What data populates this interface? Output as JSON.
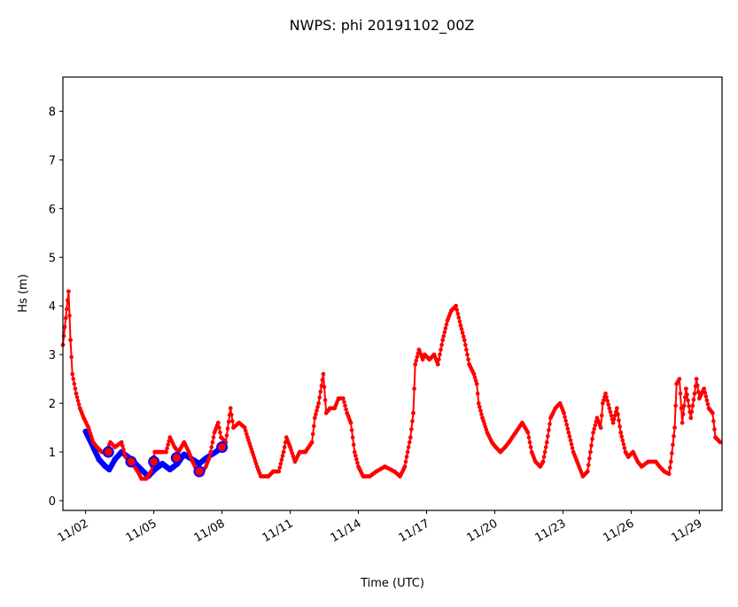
{
  "chart_data": {
    "type": "line",
    "title": "NWPS: phi 20191102_00Z",
    "xlabel": "Time (UTC)",
    "ylabel": "Hs (m)",
    "xlim": [
      "2019-11-01 00",
      "2019-11-30 00"
    ],
    "ylim": [
      -0.2,
      8.7
    ],
    "yticks": [
      0,
      1,
      2,
      3,
      4,
      5,
      6,
      7,
      8
    ],
    "xticks": [
      {
        "t": "2019-11-02 00",
        "label": "11/02"
      },
      {
        "t": "2019-11-05 00",
        "label": "11/05"
      },
      {
        "t": "2019-11-08 00",
        "label": "11/08"
      },
      {
        "t": "2019-11-11 00",
        "label": "11/11"
      },
      {
        "t": "2019-11-14 00",
        "label": "11/14"
      },
      {
        "t": "2019-11-17 00",
        "label": "11/17"
      },
      {
        "t": "2019-11-20 00",
        "label": "11/20"
      },
      {
        "t": "2019-11-23 00",
        "label": "11/23"
      },
      {
        "t": "2019-11-26 00",
        "label": "11/26"
      },
      {
        "t": "2019-11-29 00",
        "label": "11/29"
      }
    ],
    "grid": false,
    "legend": "none",
    "series": [
      {
        "color": "#0000ff",
        "points": [
          [
            "2019-11-02 00",
            1.42
          ],
          [
            "2019-11-02 08",
            1.1
          ],
          [
            "2019-11-02 14",
            0.85
          ],
          [
            "2019-11-02 20",
            0.72
          ],
          [
            "2019-11-03 01",
            0.64
          ],
          [
            "2019-11-03 07",
            0.85
          ],
          [
            "2019-11-03 14",
            1.0
          ],
          [
            "2019-11-04 00",
            0.85
          ],
          [
            "2019-11-04 18",
            0.5
          ],
          [
            "2019-11-05 01",
            0.64
          ],
          [
            "2019-11-05 09",
            0.76
          ],
          [
            "2019-11-05 17",
            0.64
          ],
          [
            "2019-11-06 01",
            0.76
          ],
          [
            "2019-11-06 08",
            0.95
          ],
          [
            "2019-11-06 19",
            0.82
          ],
          [
            "2019-11-07 00",
            0.76
          ],
          [
            "2019-11-07 07",
            0.87
          ],
          [
            "2019-11-08 01",
            1.1
          ]
        ],
        "daily_markers": [
          [
            "2019-11-03 00",
            1.0
          ],
          [
            "2019-11-04 00",
            0.8
          ],
          [
            "2019-11-05 00",
            0.8
          ],
          [
            "2019-11-06 00",
            0.88
          ],
          [
            "2019-11-07 00",
            0.6
          ],
          [
            "2019-11-08 00",
            1.1
          ]
        ]
      },
      {
        "color": "#ff0000",
        "points": [
          [
            "2019-11-01 00",
            3.2
          ],
          [
            "2019-11-01 06",
            4.3
          ],
          [
            "2019-11-01 08",
            3.3
          ],
          [
            "2019-11-01 10",
            2.6
          ],
          [
            "2019-11-01 14",
            2.2
          ],
          [
            "2019-11-01 18",
            1.9
          ],
          [
            "2019-11-01 22",
            1.7
          ],
          [
            "2019-11-02 03",
            1.5
          ],
          [
            "2019-11-02 08",
            1.2
          ],
          [
            "2019-11-02 12",
            1.1
          ],
          [
            "2019-11-02 17",
            1.0
          ],
          [
            "2019-11-02 22",
            1.0
          ],
          [
            "2019-11-03 02",
            1.2
          ],
          [
            "2019-11-03 07",
            1.1
          ],
          [
            "2019-11-03 14",
            1.2
          ],
          [
            "2019-11-03 18",
            0.9
          ],
          [
            "2019-11-04 00",
            0.8
          ],
          [
            "2019-11-04 07",
            0.6
          ],
          [
            "2019-11-04 11",
            0.45
          ],
          [
            "2019-11-04 16",
            0.45
          ],
          [
            "2019-11-04 21",
            0.6
          ],
          [
            "2019-11-05 01",
            1.0
          ],
          [
            "2019-11-05 06",
            1.0
          ],
          [
            "2019-11-05 13",
            1.0
          ],
          [
            "2019-11-05 17",
            1.3
          ],
          [
            "2019-11-05 22",
            1.1
          ],
          [
            "2019-11-06 02",
            1.0
          ],
          [
            "2019-11-06 08",
            1.2
          ],
          [
            "2019-11-06 13",
            1.0
          ],
          [
            "2019-11-06 17",
            0.8
          ],
          [
            "2019-11-06 22",
            0.6
          ],
          [
            "2019-11-07 02",
            0.55
          ],
          [
            "2019-11-07 07",
            0.7
          ],
          [
            "2019-11-07 11",
            0.9
          ],
          [
            "2019-11-07 16",
            1.4
          ],
          [
            "2019-11-07 20",
            1.6
          ],
          [
            "2019-11-07 23",
            1.3
          ],
          [
            "2019-11-08 04",
            1.2
          ],
          [
            "2019-11-08 09",
            1.9
          ],
          [
            "2019-11-08 12",
            1.5
          ],
          [
            "2019-11-08 18",
            1.6
          ],
          [
            "2019-11-09 00",
            1.5
          ],
          [
            "2019-11-09 03",
            1.3
          ],
          [
            "2019-11-09 08",
            1.0
          ],
          [
            "2019-11-09 13",
            0.7
          ],
          [
            "2019-11-09 17",
            0.5
          ],
          [
            "2019-11-10 01",
            0.5
          ],
          [
            "2019-11-10 06",
            0.6
          ],
          [
            "2019-11-10 12",
            0.6
          ],
          [
            "2019-11-10 17",
            1.0
          ],
          [
            "2019-11-10 20",
            1.3
          ],
          [
            "2019-11-11 00",
            1.1
          ],
          [
            "2019-11-11 05",
            0.8
          ],
          [
            "2019-11-11 10",
            1.0
          ],
          [
            "2019-11-11 16",
            1.0
          ],
          [
            "2019-11-11 23",
            1.2
          ],
          [
            "2019-11-12 02",
            1.7
          ],
          [
            "2019-11-12 06",
            2.0
          ],
          [
            "2019-11-12 11",
            2.6
          ],
          [
            "2019-11-12 14",
            1.8
          ],
          [
            "2019-11-12 18",
            1.9
          ],
          [
            "2019-11-12 23",
            1.9
          ],
          [
            "2019-11-13 03",
            2.1
          ],
          [
            "2019-11-13 08",
            2.1
          ],
          [
            "2019-11-13 12",
            1.8
          ],
          [
            "2019-11-13 16",
            1.6
          ],
          [
            "2019-11-13 20",
            1.0
          ],
          [
            "2019-11-14 00",
            0.7
          ],
          [
            "2019-11-14 05",
            0.5
          ],
          [
            "2019-11-14 12",
            0.5
          ],
          [
            "2019-11-14 19",
            0.6
          ],
          [
            "2019-11-15 04",
            0.7
          ],
          [
            "2019-11-15 14",
            0.6
          ],
          [
            "2019-11-15 20",
            0.5
          ],
          [
            "2019-11-16 01",
            0.7
          ],
          [
            "2019-11-16 07",
            1.3
          ],
          [
            "2019-11-16 10",
            1.8
          ],
          [
            "2019-11-16 12",
            2.8
          ],
          [
            "2019-11-16 16",
            3.1
          ],
          [
            "2019-11-16 20",
            2.9
          ],
          [
            "2019-11-16 22",
            3.0
          ],
          [
            "2019-11-17 03",
            2.9
          ],
          [
            "2019-11-17 08",
            3.0
          ],
          [
            "2019-11-17 12",
            2.8
          ],
          [
            "2019-11-17 17",
            3.3
          ],
          [
            "2019-11-17 22",
            3.7
          ],
          [
            "2019-11-18 02",
            3.9
          ],
          [
            "2019-11-18 07",
            4.0
          ],
          [
            "2019-11-18 12",
            3.6
          ],
          [
            "2019-11-18 16",
            3.3
          ],
          [
            "2019-11-18 21",
            2.8
          ],
          [
            "2019-11-19 02",
            2.6
          ],
          [
            "2019-11-19 05",
            2.4
          ],
          [
            "2019-11-19 07",
            2.0
          ],
          [
            "2019-11-19 11",
            1.7
          ],
          [
            "2019-11-19 16",
            1.4
          ],
          [
            "2019-11-19 21",
            1.2
          ],
          [
            "2019-11-20 01",
            1.1
          ],
          [
            "2019-11-20 06",
            1.0
          ],
          [
            "2019-11-20 11",
            1.1
          ],
          [
            "2019-11-20 15",
            1.2
          ],
          [
            "2019-11-20 22",
            1.4
          ],
          [
            "2019-11-21 05",
            1.6
          ],
          [
            "2019-11-21 11",
            1.4
          ],
          [
            "2019-11-21 15",
            1.0
          ],
          [
            "2019-11-21 19",
            0.8
          ],
          [
            "2019-11-22 00",
            0.7
          ],
          [
            "2019-11-22 03",
            0.8
          ],
          [
            "2019-11-22 07",
            1.2
          ],
          [
            "2019-11-22 11",
            1.7
          ],
          [
            "2019-11-22 16",
            1.9
          ],
          [
            "2019-11-22 21",
            2.0
          ],
          [
            "2019-11-23 01",
            1.8
          ],
          [
            "2019-11-23 06",
            1.4
          ],
          [
            "2019-11-23 11",
            1.0
          ],
          [
            "2019-11-23 15",
            0.8
          ],
          [
            "2019-11-23 21",
            0.5
          ],
          [
            "2019-11-24 02",
            0.6
          ],
          [
            "2019-11-24 05",
            1.0
          ],
          [
            "2019-11-24 08",
            1.4
          ],
          [
            "2019-11-24 12",
            1.7
          ],
          [
            "2019-11-24 16",
            1.5
          ],
          [
            "2019-11-24 18",
            2.0
          ],
          [
            "2019-11-24 21",
            2.2
          ],
          [
            "2019-11-25 01",
            1.9
          ],
          [
            "2019-11-25 05",
            1.6
          ],
          [
            "2019-11-25 09",
            1.9
          ],
          [
            "2019-11-25 13",
            1.4
          ],
          [
            "2019-11-25 18",
            1.0
          ],
          [
            "2019-11-25 21",
            0.9
          ],
          [
            "2019-11-26 02",
            1.0
          ],
          [
            "2019-11-26 07",
            0.8
          ],
          [
            "2019-11-26 11",
            0.7
          ],
          [
            "2019-11-26 18",
            0.8
          ],
          [
            "2019-11-27 02",
            0.8
          ],
          [
            "2019-11-27 06",
            0.7
          ],
          [
            "2019-11-27 11",
            0.6
          ],
          [
            "2019-11-27 16",
            0.55
          ],
          [
            "2019-11-27 18",
            0.8
          ],
          [
            "2019-11-27 22",
            1.5
          ],
          [
            "2019-11-28 00",
            2.4
          ],
          [
            "2019-11-28 03",
            2.5
          ],
          [
            "2019-11-28 06",
            1.6
          ],
          [
            "2019-11-28 10",
            2.3
          ],
          [
            "2019-11-28 15",
            1.7
          ],
          [
            "2019-11-28 19",
            2.2
          ],
          [
            "2019-11-28 21",
            2.5
          ],
          [
            "2019-11-29 00",
            2.1
          ],
          [
            "2019-11-29 05",
            2.3
          ],
          [
            "2019-11-29 10",
            1.9
          ],
          [
            "2019-11-29 14",
            1.8
          ],
          [
            "2019-11-29 17",
            1.3
          ],
          [
            "2019-11-29 22",
            1.2
          ]
        ]
      }
    ]
  }
}
